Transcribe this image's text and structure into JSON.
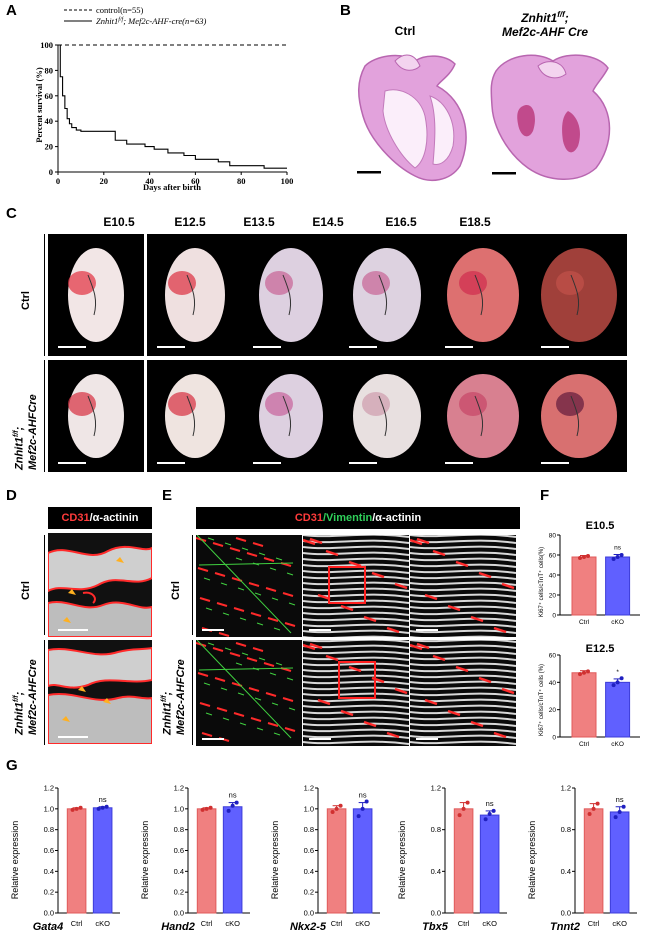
{
  "panels": {
    "A": "A",
    "B": "B",
    "C": "C",
    "D": "D",
    "E": "E",
    "F": "F",
    "G": "G"
  },
  "panelA": {
    "legend": [
      {
        "label": "control(n=55)",
        "style": "dashed"
      },
      {
        "label_pre": "Znhit1",
        "label_sup": "f/f",
        "label_post": "; Mef2c-AHF-cre(n=63)",
        "style": "solid"
      }
    ],
    "ylabel": "Percent survival  (%)",
    "xlabel": "Days after birth",
    "yticks": [
      "0",
      "20",
      "40",
      "60",
      "80",
      "100"
    ],
    "xticks": [
      "0",
      "20",
      "40",
      "60",
      "80",
      "100"
    ]
  },
  "chart_data": [
    {
      "type": "line",
      "title": "",
      "xlabel": "Days after birth",
      "ylabel": "Percent survival (%)",
      "xlim": [
        0,
        100
      ],
      "ylim": [
        0,
        100
      ],
      "series": [
        {
          "name": "control(n=55)",
          "x": [
            0,
            100
          ],
          "y": [
            100,
            100
          ]
        },
        {
          "name": "Znhit1f/f; Mef2c-AHF-cre(n=63)",
          "x": [
            0,
            1,
            1,
            2,
            2,
            3,
            3,
            4,
            4,
            5,
            5,
            6,
            6,
            8,
            8,
            10,
            10,
            25,
            25,
            30,
            30,
            38,
            38,
            42,
            42,
            48,
            48,
            55,
            55,
            60,
            60,
            70,
            70,
            75,
            75,
            90,
            90,
            100
          ],
          "y": [
            100,
            100,
            75,
            75,
            60,
            60,
            50,
            50,
            42,
            42,
            38,
            38,
            35,
            35,
            33,
            33,
            32,
            32,
            25,
            25,
            22,
            22,
            20,
            20,
            18,
            18,
            15,
            15,
            13,
            13,
            10,
            10,
            8,
            8,
            5,
            5,
            3,
            3
          ]
        }
      ]
    },
    {
      "type": "bar",
      "title": "E10.5",
      "ylabel": "Ki67+ cells/cTnT+ cells(%)",
      "categories": [
        "Ctrl",
        "cKO"
      ],
      "values": [
        58,
        58
      ],
      "errors": [
        1.5,
        2.5
      ],
      "sig": "ns",
      "ylim": [
        0,
        80
      ],
      "points": [
        [
          57,
          58,
          59
        ],
        [
          56,
          58,
          60
        ]
      ]
    },
    {
      "type": "bar",
      "title": "E12.5",
      "ylabel": "Ki67+ cells/cTnT+ cells (%)",
      "categories": [
        "Ctrl",
        "cKO"
      ],
      "values": [
        47,
        40
      ],
      "errors": [
        1.5,
        2.5
      ],
      "sig": "*",
      "ylim": [
        0,
        60
      ],
      "points": [
        [
          46,
          47,
          48
        ],
        [
          38,
          40,
          43
        ]
      ]
    },
    {
      "type": "bar",
      "gene": "Gata4",
      "ylabel": "Relative expression",
      "categories": [
        "Ctrl",
        "cKO"
      ],
      "values": [
        1.0,
        1.01
      ],
      "errors": [
        0.01,
        0.01
      ],
      "sig": "ns",
      "ylim": [
        0,
        1.2
      ],
      "yticks": [
        "0.0",
        "0.2",
        "0.4",
        "0.6",
        "0.8",
        "1.0",
        "1.2"
      ],
      "points": [
        [
          0.99,
          1.0,
          1.01
        ],
        [
          1.0,
          1.01,
          1.02
        ]
      ]
    },
    {
      "type": "bar",
      "gene": "Hand2",
      "ylabel": "Relative expression",
      "categories": [
        "Ctrl",
        "cKO"
      ],
      "values": [
        1.0,
        1.02
      ],
      "errors": [
        0.01,
        0.04
      ],
      "sig": "ns",
      "ylim": [
        0,
        1.2
      ],
      "yticks": [
        "0.0",
        "0.2",
        "0.4",
        "0.6",
        "0.8",
        "1.0",
        "1.2"
      ],
      "points": [
        [
          0.99,
          1.0,
          1.01
        ],
        [
          0.98,
          1.03,
          1.06
        ]
      ]
    },
    {
      "type": "bar",
      "gene": "Nkx2-5",
      "ylabel": "Relative expression",
      "categories": [
        "Ctrl",
        "cKO"
      ],
      "values": [
        1.0,
        1.0
      ],
      "errors": [
        0.03,
        0.06
      ],
      "sig": "ns",
      "ylim": [
        0,
        1.2
      ],
      "yticks": [
        "0.0",
        "0.2",
        "0.4",
        "0.6",
        "0.8",
        "1.0",
        "1.2"
      ],
      "points": [
        [
          0.97,
          1.0,
          1.03
        ],
        [
          0.93,
          1.0,
          1.07
        ]
      ]
    },
    {
      "type": "bar",
      "gene": "Tbx5",
      "ylabel": "Relative expression",
      "categories": [
        "Ctrl",
        "cKO"
      ],
      "values": [
        1.0,
        0.94
      ],
      "errors": [
        0.06,
        0.04
      ],
      "sig": "ns",
      "ylim": [
        0,
        1.2
      ],
      "yticks": [
        "0.0",
        "0.4",
        "0.8",
        "1.2"
      ],
      "points": [
        [
          0.94,
          1.0,
          1.06
        ],
        [
          0.9,
          0.95,
          0.98
        ]
      ]
    },
    {
      "type": "bar",
      "gene": "Tnnt2",
      "ylabel": "Relative expression",
      "categories": [
        "Ctrl",
        "cKO"
      ],
      "values": [
        1.0,
        0.97
      ],
      "errors": [
        0.05,
        0.05
      ],
      "sig": "ns",
      "ylim": [
        0,
        1.2
      ],
      "yticks": [
        "0.0",
        "0.4",
        "0.8",
        "1.2"
      ],
      "points": [
        [
          0.95,
          1.0,
          1.05
        ],
        [
          0.92,
          0.97,
          1.02
        ]
      ]
    }
  ],
  "panelB": {
    "ctrl": "Ctrl",
    "mut_pre": "Znhit1",
    "mut_sup": "f/f",
    "mut_post": ";",
    "mut_line2": "Mef2c-AHF Cre"
  },
  "panelC": {
    "stages": [
      "E10.5",
      "E12.5",
      "E13.5",
      "E14.5",
      "E16.5",
      "E18.5"
    ],
    "row1": "Ctrl",
    "row2_pre": "Znhit1",
    "row2_sup": "f/f",
    "row2_post": ";",
    "row2_line2": "Mef2c-AHFCre"
  },
  "panelD": {
    "hdr_red": "CD31",
    "hdr_white": "/α-actinin",
    "row1": "Ctrl",
    "row2_pre": "Znhit1",
    "row2_sup": "f/f",
    "row2_post": ";",
    "row2_line2": "Mef2c-AHFCre"
  },
  "panelE": {
    "hdr_red": "CD31",
    "hdr_green": "/Vimentin",
    "hdr_white": "/α-actinin",
    "row1": "Ctrl",
    "row2_pre": "Znhit1",
    "row2_sup": "f/f",
    "row2_post": ";",
    "row2_line2": "Mef2c-AHFCre"
  },
  "panelF": {
    "t1": "E10.5",
    "t2": "E12.5",
    "ylabel1": "Ki67⁺ cells/cTnT⁺ cells(%)",
    "ylabel2": "Ki67⁺ cells/cTnT⁺ cells (%)",
    "yt1": [
      "0",
      "20",
      "40",
      "60",
      "80"
    ],
    "yt2": [
      "0",
      "20",
      "40",
      "60"
    ],
    "cats": [
      "Ctrl",
      "cKO"
    ],
    "sig1": "ns",
    "sig2": "*"
  },
  "panelG": {
    "genes": [
      "Gata4",
      "Hand2",
      "Nkx2-5",
      "Tbx5",
      "Tnnt2"
    ],
    "ylabel": "Relative expression",
    "cats": [
      "Ctrl",
      "cKO"
    ]
  },
  "colors": {
    "ctrl_bar": "#f08080",
    "cko_bar": "#6060ff",
    "he_stain": "#d98ad0"
  }
}
